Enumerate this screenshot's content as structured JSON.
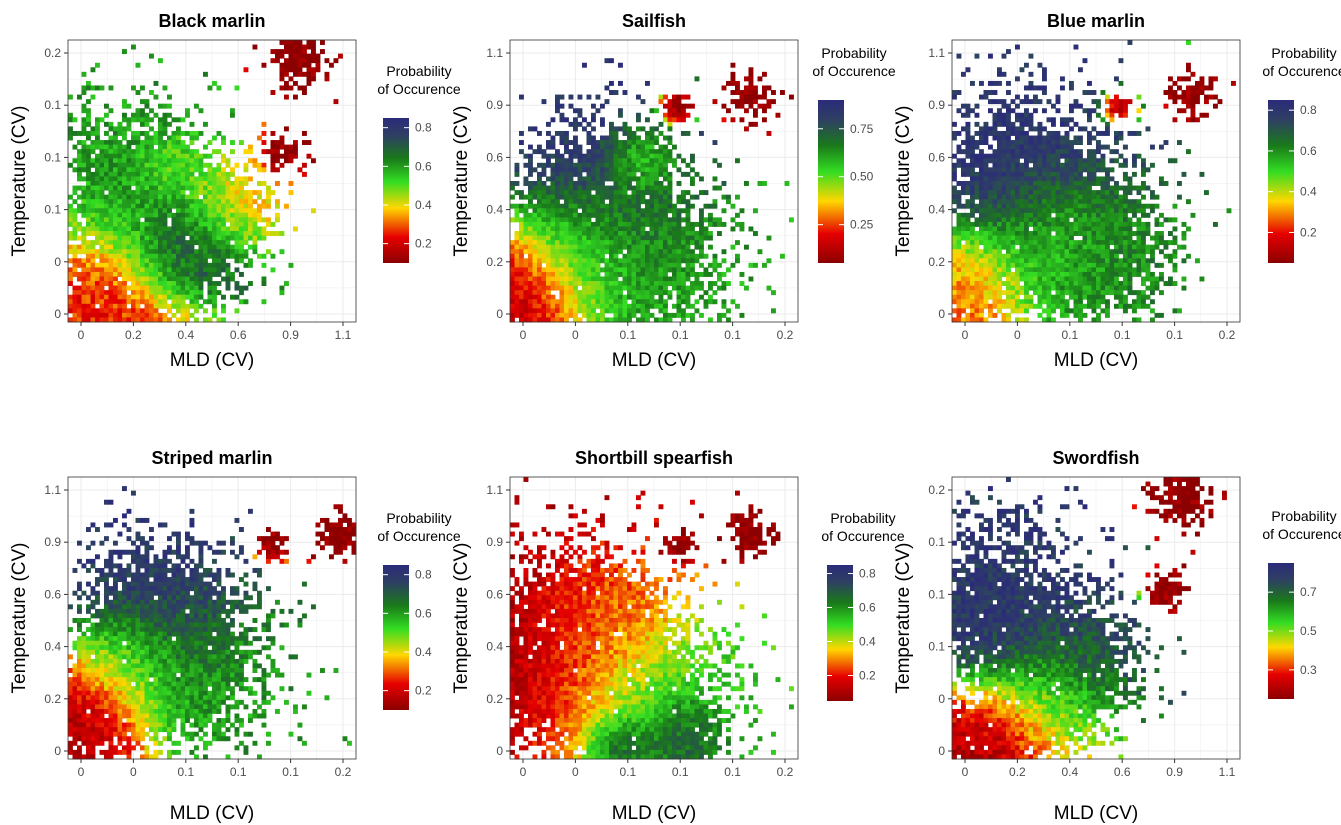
{
  "colors": {
    "gradient": [
      "#8b0000",
      "#e60000",
      "#ffd700",
      "#33dd22",
      "#1a7a1a",
      "#2e3f63",
      "#2b2b7a"
    ],
    "plot_background": "#ffffff",
    "grid": "#ebebeb",
    "panel_border": "#333333"
  },
  "chart_data": [
    {
      "type": "heatmap",
      "title": "Black marlin",
      "xlabel": "MLD (CV)",
      "ylabel": "Temperature (CV)",
      "x_tick_labels": [
        "0",
        "0.2",
        "0.4",
        "0.6",
        "0.9",
        "1.1"
      ],
      "y_tick_labels": [
        "0",
        "0",
        "0.1",
        "0.1",
        "0.1",
        "0.2"
      ],
      "legend": {
        "title_lines": [
          "Probability",
          "of Occurence"
        ],
        "labels": [
          "0.8",
          "0.6",
          "0.4",
          "0.2"
        ],
        "label_values": [
          0.8,
          0.6,
          0.4,
          0.2
        ],
        "range": [
          0.1,
          0.85
        ]
      },
      "hotspots": [
        {
          "x": 0.15,
          "y": 0.03,
          "value": 0.25,
          "spread": 0.19
        },
        {
          "x": 0.42,
          "y": 0.25,
          "value": 0.8,
          "spread": 0.12
        },
        {
          "x": 0.2,
          "y": 0.5,
          "value": 0.6,
          "spread": 0.17
        },
        {
          "x": 0.55,
          "y": 0.4,
          "value": 0.35,
          "spread": 0.1
        },
        {
          "x": 0.8,
          "y": 0.93,
          "value": 0.1,
          "spread": 0.06
        },
        {
          "x": 0.75,
          "y": 0.6,
          "value": 0.1,
          "spread": 0.04
        },
        {
          "x": 0.35,
          "y": 0.55,
          "value": 0.45,
          "spread": 0.06
        }
      ]
    },
    {
      "type": "heatmap",
      "title": "Sailfish",
      "xlabel": "MLD (CV)",
      "ylabel": "Temperature (CV)",
      "x_tick_labels": [
        "0",
        "0",
        "0.1",
        "0.1",
        "0.1",
        "0.2"
      ],
      "y_tick_labels": [
        "0",
        "0.2",
        "0.4",
        "0.6",
        "0.9",
        "1.1"
      ],
      "legend": {
        "title_lines": [
          "Probability",
          "of Occurence"
        ],
        "labels": [
          "0.75",
          "0.50",
          "0.25"
        ],
        "label_values": [
          0.75,
          0.5,
          0.25
        ],
        "range": [
          0.05,
          0.9
        ]
      },
      "hotspots": [
        {
          "x": 0.05,
          "y": 0.12,
          "value": 0.12,
          "spread": 0.14
        },
        {
          "x": 0.3,
          "y": 0.45,
          "value": 0.85,
          "spread": 0.17
        },
        {
          "x": 0.25,
          "y": 0.28,
          "value": 0.45,
          "spread": 0.12
        },
        {
          "x": 0.45,
          "y": 0.2,
          "value": 0.6,
          "spread": 0.18
        },
        {
          "x": 0.45,
          "y": 0.55,
          "value": 0.45,
          "spread": 0.07
        },
        {
          "x": 0.83,
          "y": 0.8,
          "value": 0.05,
          "spread": 0.05
        },
        {
          "x": 0.58,
          "y": 0.76,
          "value": 0.05,
          "spread": 0.03
        }
      ]
    },
    {
      "type": "heatmap",
      "title": "Blue marlin",
      "xlabel": "MLD (CV)",
      "ylabel": "Temperature (CV)",
      "x_tick_labels": [
        "0",
        "0",
        "0.1",
        "0.1",
        "0.1",
        "0.2"
      ],
      "y_tick_labels": [
        "0",
        "0.2",
        "0.4",
        "0.6",
        "0.9",
        "1.1"
      ],
      "legend": {
        "title_lines": [
          "Probability",
          "of Occurence"
        ],
        "labels": [
          "0.8",
          "0.6",
          "0.4",
          "0.2"
        ],
        "label_values": [
          0.8,
          0.6,
          0.4,
          0.2
        ],
        "range": [
          0.05,
          0.85
        ]
      },
      "hotspots": [
        {
          "x": 0.08,
          "y": 0.15,
          "value": 0.25,
          "spread": 0.12
        },
        {
          "x": 0.25,
          "y": 0.5,
          "value": 0.8,
          "spread": 0.2
        },
        {
          "x": 0.35,
          "y": 0.3,
          "value": 0.45,
          "spread": 0.12
        },
        {
          "x": 0.5,
          "y": 0.25,
          "value": 0.6,
          "spread": 0.16
        },
        {
          "x": 0.83,
          "y": 0.8,
          "value": 0.05,
          "spread": 0.05
        },
        {
          "x": 0.58,
          "y": 0.76,
          "value": 0.05,
          "spread": 0.03
        }
      ]
    },
    {
      "type": "heatmap",
      "title": "Striped marlin",
      "xlabel": "MLD (CV)",
      "ylabel": "Temperature (CV)",
      "x_tick_labels": [
        "0",
        "0",
        "0.1",
        "0.1",
        "0.1",
        "0.2"
      ],
      "y_tick_labels": [
        "0",
        "0.2",
        "0.4",
        "0.6",
        "0.9",
        "1.1"
      ],
      "legend": {
        "title_lines": [
          "Probability",
          "of Occurence"
        ],
        "labels": [
          "0.8",
          "0.6",
          "0.4",
          "0.2"
        ],
        "label_values": [
          0.8,
          0.6,
          0.4,
          0.2
        ],
        "range": [
          0.1,
          0.85
        ]
      },
      "hotspots": [
        {
          "x": 0.08,
          "y": 0.15,
          "value": 0.15,
          "spread": 0.13
        },
        {
          "x": 0.3,
          "y": 0.55,
          "value": 0.8,
          "spread": 0.16
        },
        {
          "x": 0.42,
          "y": 0.3,
          "value": 0.6,
          "spread": 0.17
        },
        {
          "x": 0.2,
          "y": 0.35,
          "value": 0.4,
          "spread": 0.1
        },
        {
          "x": 0.95,
          "y": 0.8,
          "value": 0.1,
          "spread": 0.05
        },
        {
          "x": 0.7,
          "y": 0.76,
          "value": 0.1,
          "spread": 0.03
        }
      ]
    },
    {
      "type": "heatmap",
      "title": "Shortbill spearfish",
      "xlabel": "MLD (CV)",
      "ylabel": "Temperature (CV)",
      "x_tick_labels": [
        "0",
        "0",
        "0.1",
        "0.1",
        "0.1",
        "0.2"
      ],
      "y_tick_labels": [
        "0",
        "0.2",
        "0.4",
        "0.6",
        "0.9",
        "1.1"
      ],
      "legend": {
        "title_lines": [
          "Probability",
          "of Occurence"
        ],
        "labels": [
          "0.8",
          "0.6",
          "0.4",
          "0.2"
        ],
        "label_values": [
          0.8,
          0.6,
          0.4,
          0.2
        ],
        "range": [
          0.05,
          0.85
        ]
      },
      "hotspots": [
        {
          "x": 0.15,
          "y": 0.35,
          "value": 0.1,
          "spread": 0.22
        },
        {
          "x": 0.45,
          "y": 0.2,
          "value": 0.55,
          "spread": 0.18
        },
        {
          "x": 0.3,
          "y": 0.5,
          "value": 0.3,
          "spread": 0.12
        },
        {
          "x": 0.38,
          "y": 0.05,
          "value": 0.8,
          "spread": 0.06
        },
        {
          "x": 0.58,
          "y": 0.08,
          "value": 0.75,
          "spread": 0.08
        },
        {
          "x": 0.83,
          "y": 0.8,
          "value": 0.05,
          "spread": 0.05
        },
        {
          "x": 0.58,
          "y": 0.76,
          "value": 0.05,
          "spread": 0.03
        }
      ]
    },
    {
      "type": "heatmap",
      "title": "Swordfish",
      "xlabel": "MLD (CV)",
      "ylabel": "Temperature (CV)",
      "x_tick_labels": [
        "0",
        "0.2",
        "0.4",
        "0.6",
        "0.9",
        "1.1"
      ],
      "y_tick_labels": [
        "0",
        "0",
        "0.1",
        "0.1",
        "0.1",
        "0.2"
      ],
      "legend": {
        "title_lines": [
          "Probability",
          "of Occurence"
        ],
        "labels": [
          "0.7",
          "0.5",
          "0.3"
        ],
        "label_values": [
          0.7,
          0.5,
          0.3
        ],
        "range": [
          0.15,
          0.85
        ]
      },
      "hotspots": [
        {
          "x": 0.15,
          "y": 0.55,
          "value": 0.8,
          "spread": 0.18
        },
        {
          "x": 0.35,
          "y": 0.2,
          "value": 0.45,
          "spread": 0.12
        },
        {
          "x": 0.1,
          "y": 0.05,
          "value": 0.2,
          "spread": 0.13
        },
        {
          "x": 0.45,
          "y": 0.35,
          "value": 0.75,
          "spread": 0.12
        },
        {
          "x": 0.8,
          "y": 0.93,
          "value": 0.15,
          "spread": 0.06
        },
        {
          "x": 0.75,
          "y": 0.6,
          "value": 0.15,
          "spread": 0.04
        }
      ]
    }
  ]
}
